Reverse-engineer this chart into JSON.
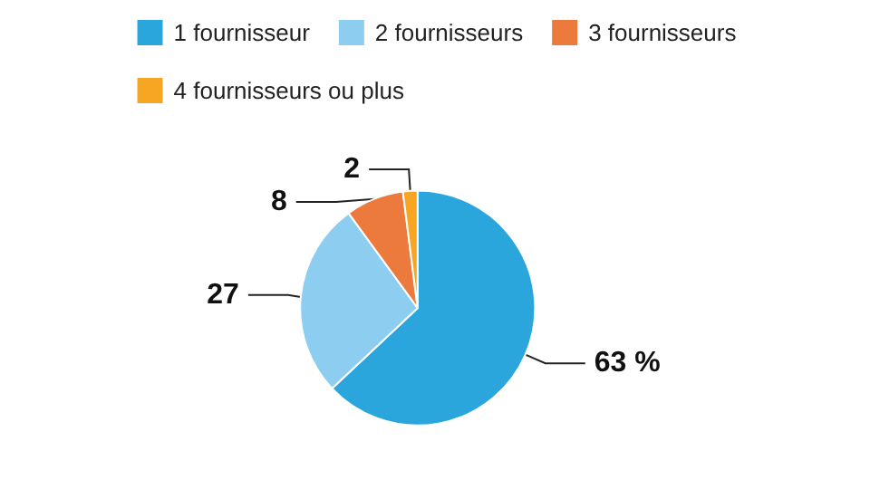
{
  "chart_data": {
    "type": "pie",
    "categories": [
      "1 fournisseur",
      "2 fournisseurs",
      "3 fournisseurs",
      "4 fournisseurs ou plus"
    ],
    "values": [
      63,
      27,
      8,
      2
    ],
    "colors": [
      "#2aa6dd",
      "#8ccdf0",
      "#ec7a3c",
      "#f6a623"
    ],
    "value_labels": [
      "63 %",
      "27",
      "8",
      "2"
    ],
    "legend": "top"
  }
}
